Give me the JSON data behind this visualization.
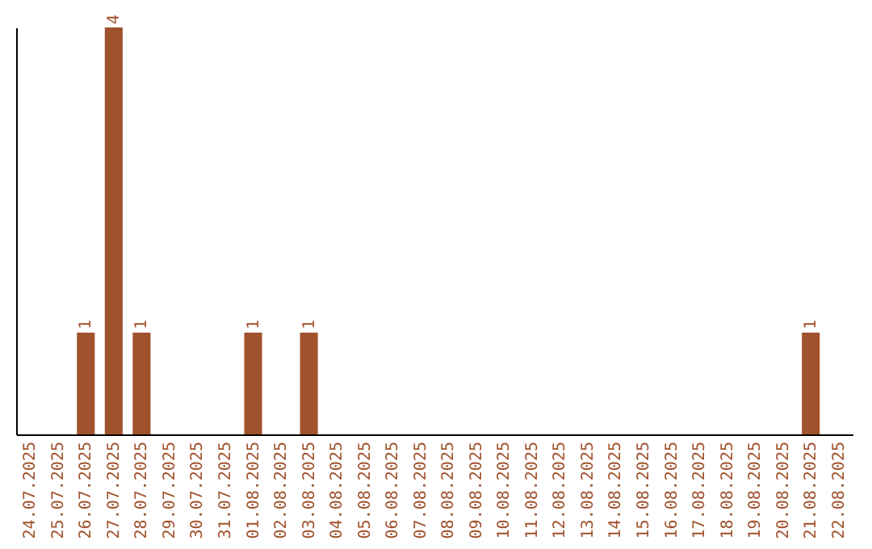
{
  "chart_data": {
    "type": "bar",
    "categories": [
      "24.07.2025",
      "25.07.2025",
      "26.07.2025",
      "27.07.2025",
      "28.07.2025",
      "29.07.2025",
      "30.07.2025",
      "31.07.2025",
      "01.08.2025",
      "02.08.2025",
      "03.08.2025",
      "04.08.2025",
      "05.08.2025",
      "06.08.2025",
      "07.08.2025",
      "08.08.2025",
      "09.08.2025",
      "10.08.2025",
      "11.08.2025",
      "12.08.2025",
      "13.08.2025",
      "14.08.2025",
      "15.08.2025",
      "16.08.2025",
      "17.08.2025",
      "18.08.2025",
      "19.08.2025",
      "20.08.2025",
      "21.08.2025",
      "22.08.2025"
    ],
    "values": [
      0,
      0,
      1,
      4,
      1,
      0,
      0,
      0,
      1,
      0,
      1,
      0,
      0,
      0,
      0,
      0,
      0,
      0,
      0,
      0,
      0,
      0,
      0,
      0,
      0,
      0,
      0,
      0,
      1,
      0
    ],
    "value_labels": [
      null,
      null,
      "1",
      "4",
      "1",
      null,
      null,
      null,
      "1",
      null,
      "1",
      null,
      null,
      null,
      null,
      null,
      null,
      null,
      null,
      null,
      null,
      null,
      null,
      null,
      null,
      null,
      null,
      null,
      "1",
      null
    ],
    "color": "#a0522d",
    "grid": false,
    "tick_labels": "x"
  }
}
